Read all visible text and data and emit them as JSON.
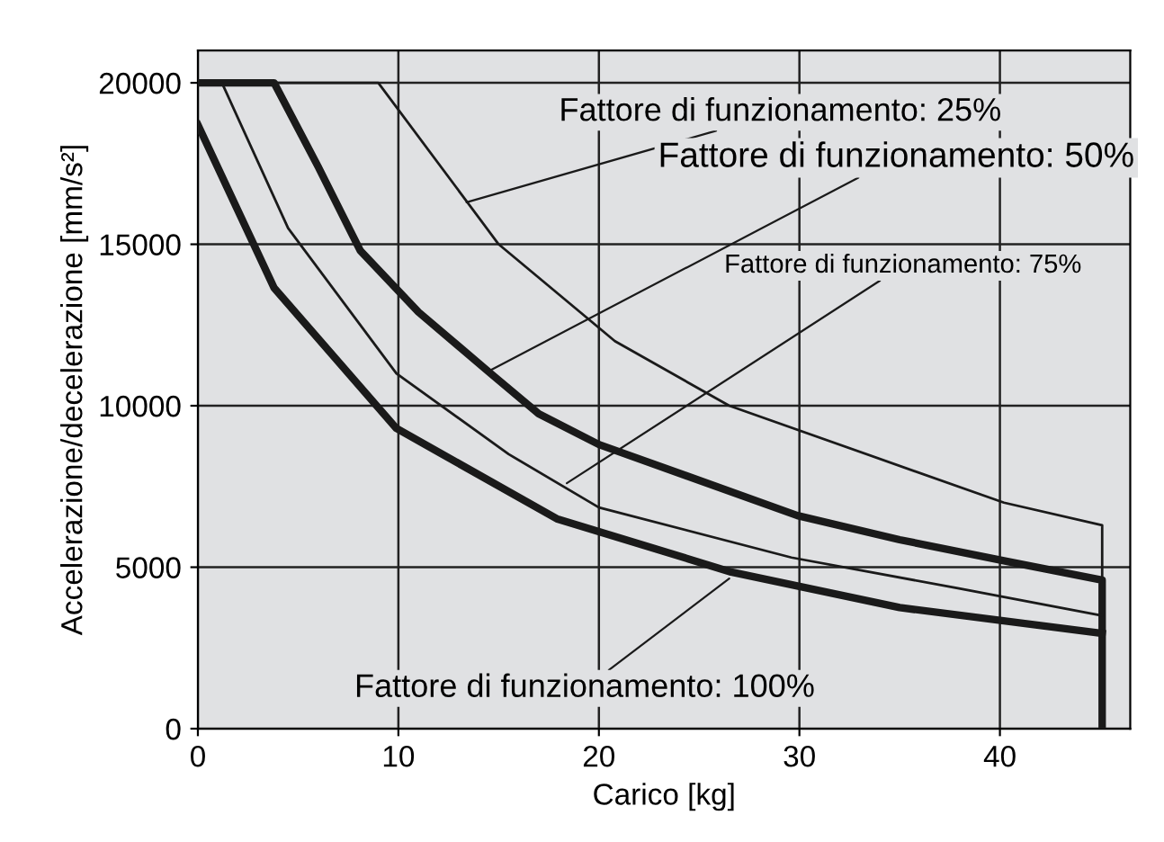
{
  "chart_data": {
    "type": "line",
    "xlabel": "Carico [kg]",
    "ylabel": "Accelerazione/decelerazione [mm/s²]",
    "xlim": [
      0,
      46.5
    ],
    "ylim": [
      0,
      21000
    ],
    "xticks": [
      0,
      10,
      20,
      30,
      40
    ],
    "yticks": [
      0,
      5000,
      10000,
      15000,
      20000
    ],
    "grid": true,
    "legend": false,
    "marker": "none",
    "line_style": "solid",
    "series": [
      {
        "color": "#1a1a1a",
        "x": [
          0,
          9,
          15,
          20.8,
          26.5,
          40.2,
          45.1,
          45.1
        ],
        "values": [
          20000,
          20000,
          15000,
          12000,
          10000,
          7000,
          6300,
          4600
        ]
      },
      {
        "color": "#1a1a1a",
        "x": [
          0,
          3.8,
          6,
          8.1,
          11,
          14.6,
          17,
          20,
          29.9,
          35,
          40.2,
          45.1,
          45.1
        ],
        "values": [
          20000,
          20000,
          17400,
          14800,
          12900,
          11000,
          9750,
          8800,
          6600,
          5850,
          5200,
          4600,
          0
        ]
      },
      {
        "color": "#1a1a1a",
        "x": [
          0,
          1.2,
          4.5,
          9.9,
          15.5,
          20,
          29.6,
          37.9,
          45.1
        ],
        "values": [
          20000,
          20000,
          15500,
          11000,
          8500,
          6850,
          5300,
          4350,
          3500
        ]
      },
      {
        "color": "#1a1a1a",
        "x": [
          0,
          3.8,
          9.9,
          17.9,
          26.6,
          35,
          45.1
        ],
        "values": [
          18700,
          13650,
          9300,
          6500,
          4850,
          3750,
          2950
        ]
      }
    ],
    "annotations": [
      {
        "text": "Fattore di funzionamento: 25%",
        "x": 13.4,
        "y": 16300
      },
      {
        "text": "Fattore di funzionamento: 50%",
        "x": 14.6,
        "y": 11100
      },
      {
        "text": "Fattore di funzionamento: 75%",
        "x": 18.4,
        "y": 7600
      },
      {
        "text": "Fattore di funzionamento: 100%",
        "x": 26.5,
        "y": 4650
      }
    ]
  }
}
